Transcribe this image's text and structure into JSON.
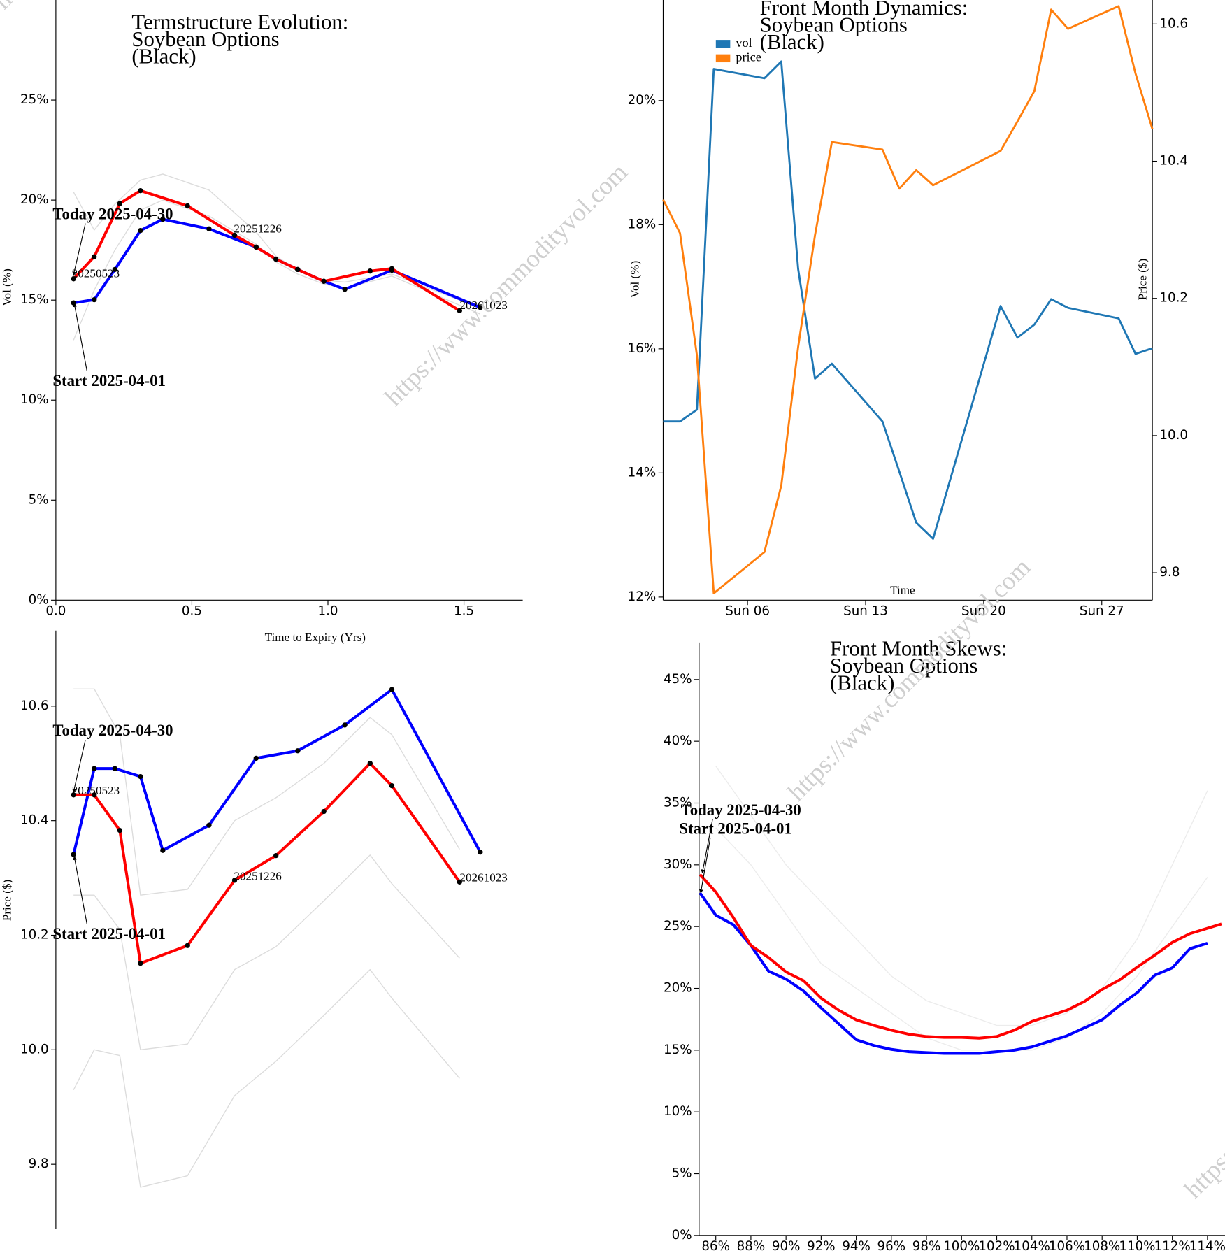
{
  "watermark": "https://www.commodityvol.com",
  "chart_data": [
    {
      "type": "line",
      "title": [
        "Termstructure Evolution:",
        "Soybean Options",
        "(Black)"
      ],
      "xlabel": "Time to Expiry (Yrs)",
      "ylabel": "Vol (%)",
      "xlim": [
        0,
        1.716
      ],
      "xticks": [
        {
          "value": 0,
          "label": "0.0"
        },
        0.5,
        {
          "value": 1,
          "label": "1.0"
        },
        1.5
      ],
      "ylim": [
        0,
        30
      ],
      "yticks": [
        {
          "value": 0,
          "label": "0%"
        },
        {
          "value": 5,
          "label": "5%"
        },
        {
          "value": 10,
          "label": "10%"
        },
        {
          "value": 15,
          "label": "15%"
        },
        {
          "value": 20,
          "label": "20%"
        },
        {
          "value": 25,
          "label": "25%"
        }
      ],
      "markers": true,
      "series": [
        {
          "color": "#dcdcdc",
          "x": [
            0.065,
            0.141,
            0.217,
            0.311,
            0.393,
            0.563,
            0.736,
            0.809,
            0.889,
            0.985,
            1.062,
            1.235,
            1.56
          ],
          "values": [
            20.4,
            18.5,
            19.8,
            21.0,
            21.3,
            20.5,
            18.4,
            17.2,
            16.5,
            16.0,
            15.9,
            16.3,
            14.6
          ]
        },
        {
          "color": "#dcdcdc",
          "x": [
            0.065,
            0.141,
            0.217,
            0.311,
            0.393,
            0.563,
            0.736,
            0.809,
            0.889,
            0.985,
            1.062,
            1.235,
            1.56
          ],
          "values": [
            13.0,
            15.5,
            17.5,
            19.5,
            20.0,
            19.2,
            17.8,
            16.9,
            16.3,
            15.8,
            15.6,
            16.2,
            14.3
          ]
        },
        {
          "name": "Start 2025-04-01",
          "color": "#0000ff",
          "x": [
            0.065,
            0.141,
            0.217,
            0.311,
            0.393,
            0.563,
            0.736,
            0.809,
            0.889,
            0.985,
            1.062,
            1.235,
            1.56
          ],
          "values": [
            14.86,
            15.02,
            16.53,
            18.48,
            19.04,
            18.56,
            17.65,
            17.05,
            16.53,
            15.94,
            15.54,
            16.49,
            14.63
          ]
        },
        {
          "name": "Today 2025-04-30",
          "color": "#ff0000",
          "x": [
            0.065,
            0.141,
            0.235,
            0.311,
            0.484,
            0.657,
            0.736,
            0.809,
            0.889,
            0.985,
            1.155,
            1.235,
            1.484
          ],
          "values": [
            16.06,
            17.17,
            19.83,
            20.47,
            19.71,
            18.24,
            17.65,
            17.05,
            16.53,
            15.94,
            16.45,
            16.57,
            14.47
          ]
        }
      ],
      "annotations": [
        "20250523",
        "20251226",
        "20261023"
      ]
    },
    {
      "type": "line",
      "title": [
        "Front Month Dynamics:",
        "Soybean Options",
        "(Black)"
      ],
      "xlabel": "Time",
      "ylabel": "Vol (%)",
      "y2label": "Price ($)",
      "x": [
        1,
        2,
        3,
        4,
        7,
        8,
        9,
        10,
        11,
        14,
        15,
        16,
        17,
        21,
        22,
        23,
        24,
        25,
        28,
        29,
        30
      ],
      "xlim": [
        1,
        30
      ],
      "xticks": [
        {
          "value": 6,
          "label": "Sun 06"
        },
        {
          "value": 13,
          "label": "Sun 13"
        },
        {
          "value": 20,
          "label": "Sun 20"
        },
        {
          "value": 27,
          "label": "Sun 27"
        }
      ],
      "ylim": [
        11.95,
        21.62
      ],
      "yticks": [
        {
          "value": 12,
          "label": "12%"
        },
        {
          "value": 14,
          "label": "14%"
        },
        {
          "value": 16,
          "label": "16%"
        },
        {
          "value": 18,
          "label": "18%"
        },
        {
          "value": 20,
          "label": "20%"
        }
      ],
      "y2lim": [
        9.76,
        10.635
      ],
      "y2ticks": [
        9.8,
        {
          "value": 10,
          "label": "10.0"
        },
        10.2,
        10.4,
        10.6
      ],
      "legend": "upper left",
      "series": [
        {
          "name": "vol",
          "color": "#1f77b4",
          "values": [
            14.83,
            14.83,
            15.02,
            20.51,
            20.36,
            20.63,
            17.29,
            15.52,
            15.76,
            14.83,
            14.02,
            13.2,
            12.94,
            16.69,
            16.18,
            16.39,
            16.8,
            16.66,
            16.49,
            15.92,
            16.01
          ]
        },
        {
          "name": "price",
          "color": "#ff7f0e",
          "axis": "y2",
          "values": [
            10.344,
            10.295,
            10.117,
            9.77,
            9.83,
            9.927,
            10.129,
            10.292,
            10.428,
            10.417,
            10.36,
            10.387,
            10.365,
            10.415,
            10.458,
            10.502,
            10.621,
            10.593,
            10.626,
            10.528,
            10.447
          ]
        }
      ]
    },
    {
      "type": "line",
      "ylabel": "Price ($)",
      "xlim": [
        0,
        1.716
      ],
      "ylim": [
        9.687,
        10.732
      ],
      "yticks": [
        9.8,
        {
          "value": 10,
          "label": "10.0"
        },
        10.2,
        10.4,
        10.6
      ],
      "markers": true,
      "series": [
        {
          "color": "#dcdcdc",
          "x": [
            0.065,
            0.141,
            0.235,
            0.311,
            0.484,
            0.657,
            0.809,
            0.985,
            1.155,
            1.235,
            1.484
          ],
          "values": [
            10.63,
            10.63,
            10.55,
            10.27,
            10.28,
            10.4,
            10.44,
            10.5,
            10.58,
            10.55,
            10.35
          ]
        },
        {
          "color": "#dcdcdc",
          "x": [
            0.065,
            0.141,
            0.235,
            0.311,
            0.484,
            0.657,
            0.809,
            0.985,
            1.155,
            1.235,
            1.484
          ],
          "values": [
            9.93,
            10.0,
            9.99,
            9.76,
            9.78,
            9.92,
            9.98,
            10.06,
            10.14,
            10.09,
            9.95
          ]
        },
        {
          "color": "#dcdcdc",
          "x": [
            0.065,
            0.141,
            0.235,
            0.311,
            0.484,
            0.657,
            0.809,
            0.985,
            1.155,
            1.235,
            1.484
          ],
          "values": [
            10.27,
            10.27,
            10.21,
            10.0,
            10.01,
            10.14,
            10.18,
            10.26,
            10.34,
            10.29,
            10.16
          ]
        },
        {
          "name": "Start 2025-04-01",
          "color": "#0000ff",
          "x": [
            0.065,
            0.141,
            0.217,
            0.311,
            0.393,
            0.563,
            0.736,
            0.889,
            1.062,
            1.235,
            1.56
          ],
          "values": [
            10.341,
            10.491,
            10.491,
            10.477,
            10.348,
            10.392,
            10.509,
            10.522,
            10.567,
            10.629,
            10.345
          ]
        },
        {
          "name": "Today 2025-04-30",
          "color": "#ff0000",
          "x": [
            0.065,
            0.141,
            0.235,
            0.311,
            0.484,
            0.657,
            0.809,
            0.985,
            1.155,
            1.235,
            1.484
          ],
          "values": [
            10.445,
            10.445,
            10.383,
            10.151,
            10.182,
            10.296,
            10.339,
            10.416,
            10.5,
            10.461,
            10.293
          ]
        }
      ],
      "annotations": [
        "20250523",
        "20251226",
        "20261023"
      ]
    },
    {
      "type": "line",
      "title": [
        "Front Month Skews:",
        "Soybean Options",
        "(Black)"
      ],
      "xlim": [
        85.05,
        115
      ],
      "xticks": [
        {
          "value": 86,
          "label": "86%"
        },
        {
          "value": 88,
          "label": "88%"
        },
        {
          "value": 90,
          "label": "90%"
        },
        {
          "value": 92,
          "label": "92%"
        },
        {
          "value": 94,
          "label": "94%"
        },
        {
          "value": 96,
          "label": "96%"
        },
        {
          "value": 98,
          "label": "98%"
        },
        {
          "value": 100,
          "label": "100%"
        },
        {
          "value": 102,
          "label": "102%"
        },
        {
          "value": 104,
          "label": "104%"
        },
        {
          "value": 106,
          "label": "106%"
        },
        {
          "value": 108,
          "label": "108%"
        },
        {
          "value": 110,
          "label": "110%"
        },
        {
          "value": 112,
          "label": "112%"
        },
        {
          "value": 114,
          "label": "114%"
        }
      ],
      "ylim": [
        0,
        48
      ],
      "yticks": [
        {
          "value": 0,
          "label": "0%"
        },
        {
          "value": 5,
          "label": "5%"
        },
        {
          "value": 10,
          "label": "10%"
        },
        {
          "value": 15,
          "label": "15%"
        },
        {
          "value": 20,
          "label": "20%"
        },
        {
          "value": 25,
          "label": "25%"
        },
        {
          "value": 30,
          "label": "30%"
        },
        {
          "value": 35,
          "label": "35%"
        },
        {
          "value": 40,
          "label": "40%"
        },
        {
          "value": 45,
          "label": "45%"
        }
      ],
      "series": [
        {
          "color": "#ececec",
          "x": [
            86,
            88,
            90,
            92,
            94,
            96,
            98,
            100,
            102,
            104,
            106,
            108,
            110,
            112,
            114
          ],
          "values": [
            38,
            34,
            30,
            27,
            24,
            21,
            19,
            18,
            17,
            17,
            18,
            20,
            24,
            30,
            36
          ]
        },
        {
          "color": "#ececec",
          "x": [
            86,
            88,
            90,
            92,
            94,
            96,
            98,
            100,
            102,
            104,
            106,
            108,
            110,
            112,
            114
          ],
          "values": [
            33,
            30,
            26,
            22,
            20,
            18,
            16,
            15,
            15,
            15,
            16,
            18,
            21,
            25,
            29
          ]
        },
        {
          "name": "Start 2025-04-01",
          "color": "#0000ff",
          "x": [
            85.1,
            86,
            87,
            88,
            89,
            90,
            91,
            92,
            93,
            94,
            95,
            96,
            97,
            98,
            99,
            100,
            101,
            102,
            103,
            104,
            105,
            106,
            107,
            108,
            109,
            110,
            111,
            112,
            113,
            114
          ],
          "values": [
            27.73,
            25.92,
            25.15,
            23.47,
            21.4,
            20.75,
            19.78,
            18.42,
            17.13,
            15.84,
            15.38,
            15.06,
            14.87,
            14.8,
            14.74,
            14.74,
            14.74,
            14.87,
            15.0,
            15.26,
            15.71,
            16.16,
            16.81,
            17.45,
            18.62,
            19.65,
            21.07,
            21.66,
            23.21,
            23.66
          ]
        },
        {
          "name": "Today 2025-04-30",
          "color": "#ff0000",
          "x": [
            85.1,
            86,
            87,
            88,
            89,
            90,
            91,
            92,
            93,
            94,
            95,
            96,
            97,
            98,
            99,
            100,
            101,
            102,
            103,
            104,
            105,
            106,
            107,
            108,
            109,
            110,
            111,
            112,
            113,
            114.8
          ],
          "values": [
            29.22,
            27.8,
            25.73,
            23.47,
            22.5,
            21.33,
            20.62,
            19.2,
            18.23,
            17.45,
            17.0,
            16.61,
            16.29,
            16.1,
            16.03,
            16.03,
            15.97,
            16.1,
            16.61,
            17.32,
            17.78,
            18.23,
            18.94,
            19.91,
            20.69,
            21.72,
            22.69,
            23.72,
            24.43,
            25.21
          ]
        }
      ]
    }
  ]
}
